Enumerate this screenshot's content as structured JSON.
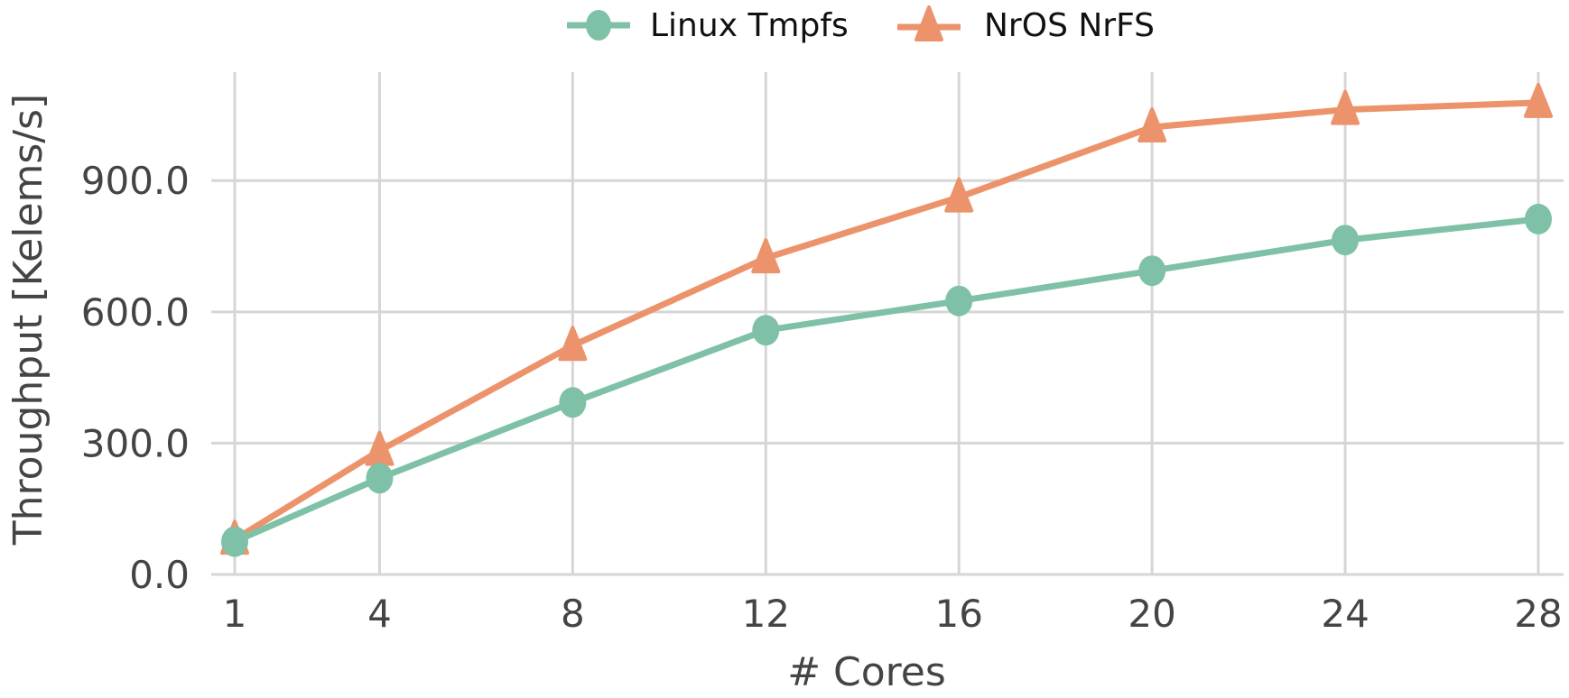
{
  "chart_data": {
    "type": "line",
    "title": "",
    "xlabel": "# Cores",
    "ylabel": "Throughput [Kelems/s]",
    "x": [
      1,
      4,
      8,
      12,
      16,
      20,
      24,
      28
    ],
    "x_tick_labels": [
      "1",
      "4",
      "8",
      "12",
      "16",
      "20",
      "24",
      "28"
    ],
    "y_tick_values": [
      0,
      300,
      600,
      900
    ],
    "y_tick_labels": [
      "0.0",
      "300.0",
      "600.0",
      "900.0"
    ],
    "ylim": [
      0,
      1150
    ],
    "xlim": [
      1,
      28
    ],
    "grid": true,
    "legend_position": "top-center",
    "series": [
      {
        "name": "Linux Tmpfs",
        "marker": "circle",
        "color": "#7fc1a6",
        "values": [
          75,
          220,
          393,
          558,
          625,
          694,
          764,
          812
        ]
      },
      {
        "name": "NrOS NrFS",
        "marker": "triangle",
        "color": "#ec936c",
        "values": [
          80,
          283,
          523,
          723,
          862,
          1022,
          1062,
          1078
        ]
      }
    ]
  }
}
